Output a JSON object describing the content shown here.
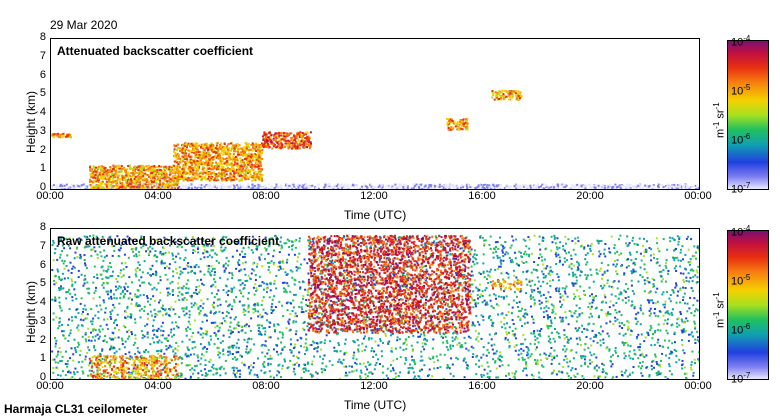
{
  "header": {
    "date": "29 Mar 2020"
  },
  "footer": {
    "instrument": "Harmaja CL31 ceilometer"
  },
  "colorbar": {
    "labels": [
      "10^-4",
      "10^-5",
      "10^-6",
      "10^-7"
    ],
    "unit": "m^-1 sr^-1"
  },
  "chart_data": [
    {
      "type": "heatmap",
      "title": "Attenuated backscatter coefficient",
      "xlabel": "Time (UTC)",
      "ylabel": "Height (km)",
      "xticks": [
        "00:00",
        "04:00",
        "08:00",
        "12:00",
        "16:00",
        "20:00",
        "00:00"
      ],
      "yticks": [
        "0",
        "1",
        "2",
        "3",
        "4",
        "5",
        "6",
        "7",
        "8"
      ],
      "xlim": [
        0,
        24
      ],
      "ylim": [
        0,
        8
      ],
      "color_scale": {
        "min": "1e-7",
        "max": "1e-4",
        "log": true
      },
      "features": [
        {
          "name": "boundary layer",
          "time_range": [
            0,
            24
          ],
          "height_range": [
            0,
            0.3
          ],
          "level": "1e-7"
        },
        {
          "name": "low fog/cloud",
          "time_range": [
            1.4,
            4.7
          ],
          "height_range": [
            0,
            1.3
          ],
          "level": "1e-5"
        },
        {
          "name": "rising cloud",
          "time_range": [
            4.5,
            7.8
          ],
          "height_range": [
            0.5,
            2.5
          ],
          "level": "1e-5"
        },
        {
          "name": "cloud layer",
          "time_range": [
            7.8,
            9.6
          ],
          "height_range": [
            2.2,
            3.1
          ],
          "level": "2e-5"
        },
        {
          "name": "cloud at 3.5 km",
          "time_range": [
            14.6,
            15.4
          ],
          "height_range": [
            3.2,
            3.8
          ],
          "level": "1e-5"
        },
        {
          "name": "cloud at 5 km",
          "time_range": [
            16.3,
            17.4
          ],
          "height_range": [
            4.8,
            5.3
          ],
          "level": "1e-5"
        },
        {
          "name": "early cloud at 2.9 km",
          "time_range": [
            0,
            0.8
          ],
          "height_range": [
            2.8,
            3.0
          ],
          "level": "1e-5"
        }
      ]
    },
    {
      "type": "heatmap",
      "title": "Raw attenuated backscatter coefficient",
      "xlabel": "Time (UTC)",
      "ylabel": "Height (km)",
      "xticks": [
        "00:00",
        "04:00",
        "08:00",
        "12:00",
        "16:00",
        "20:00",
        "00:00"
      ],
      "yticks": [
        "0",
        "1",
        "2",
        "3",
        "4",
        "5",
        "6",
        "7",
        "8"
      ],
      "xlim": [
        0,
        24
      ],
      "ylim": [
        0,
        8
      ],
      "color_scale": {
        "min": "1e-7",
        "max": "1e-4",
        "log": true
      },
      "features": [
        {
          "name": "noisy background",
          "time_range": [
            0,
            24
          ],
          "height_range": [
            0,
            7.7
          ],
          "level": "1e-6"
        },
        {
          "name": "high noise midday",
          "time_range": [
            9.5,
            15.5
          ],
          "height_range": [
            2.5,
            7.7
          ],
          "level": "3e-5"
        },
        {
          "name": "low fog/cloud",
          "time_range": [
            1.4,
            4.7
          ],
          "height_range": [
            0,
            1.3
          ],
          "level": "1e-5"
        },
        {
          "name": "cloud at 5 km",
          "time_range": [
            16.3,
            17.4
          ],
          "height_range": [
            4.8,
            5.3
          ],
          "level": "1e-5"
        }
      ]
    }
  ]
}
